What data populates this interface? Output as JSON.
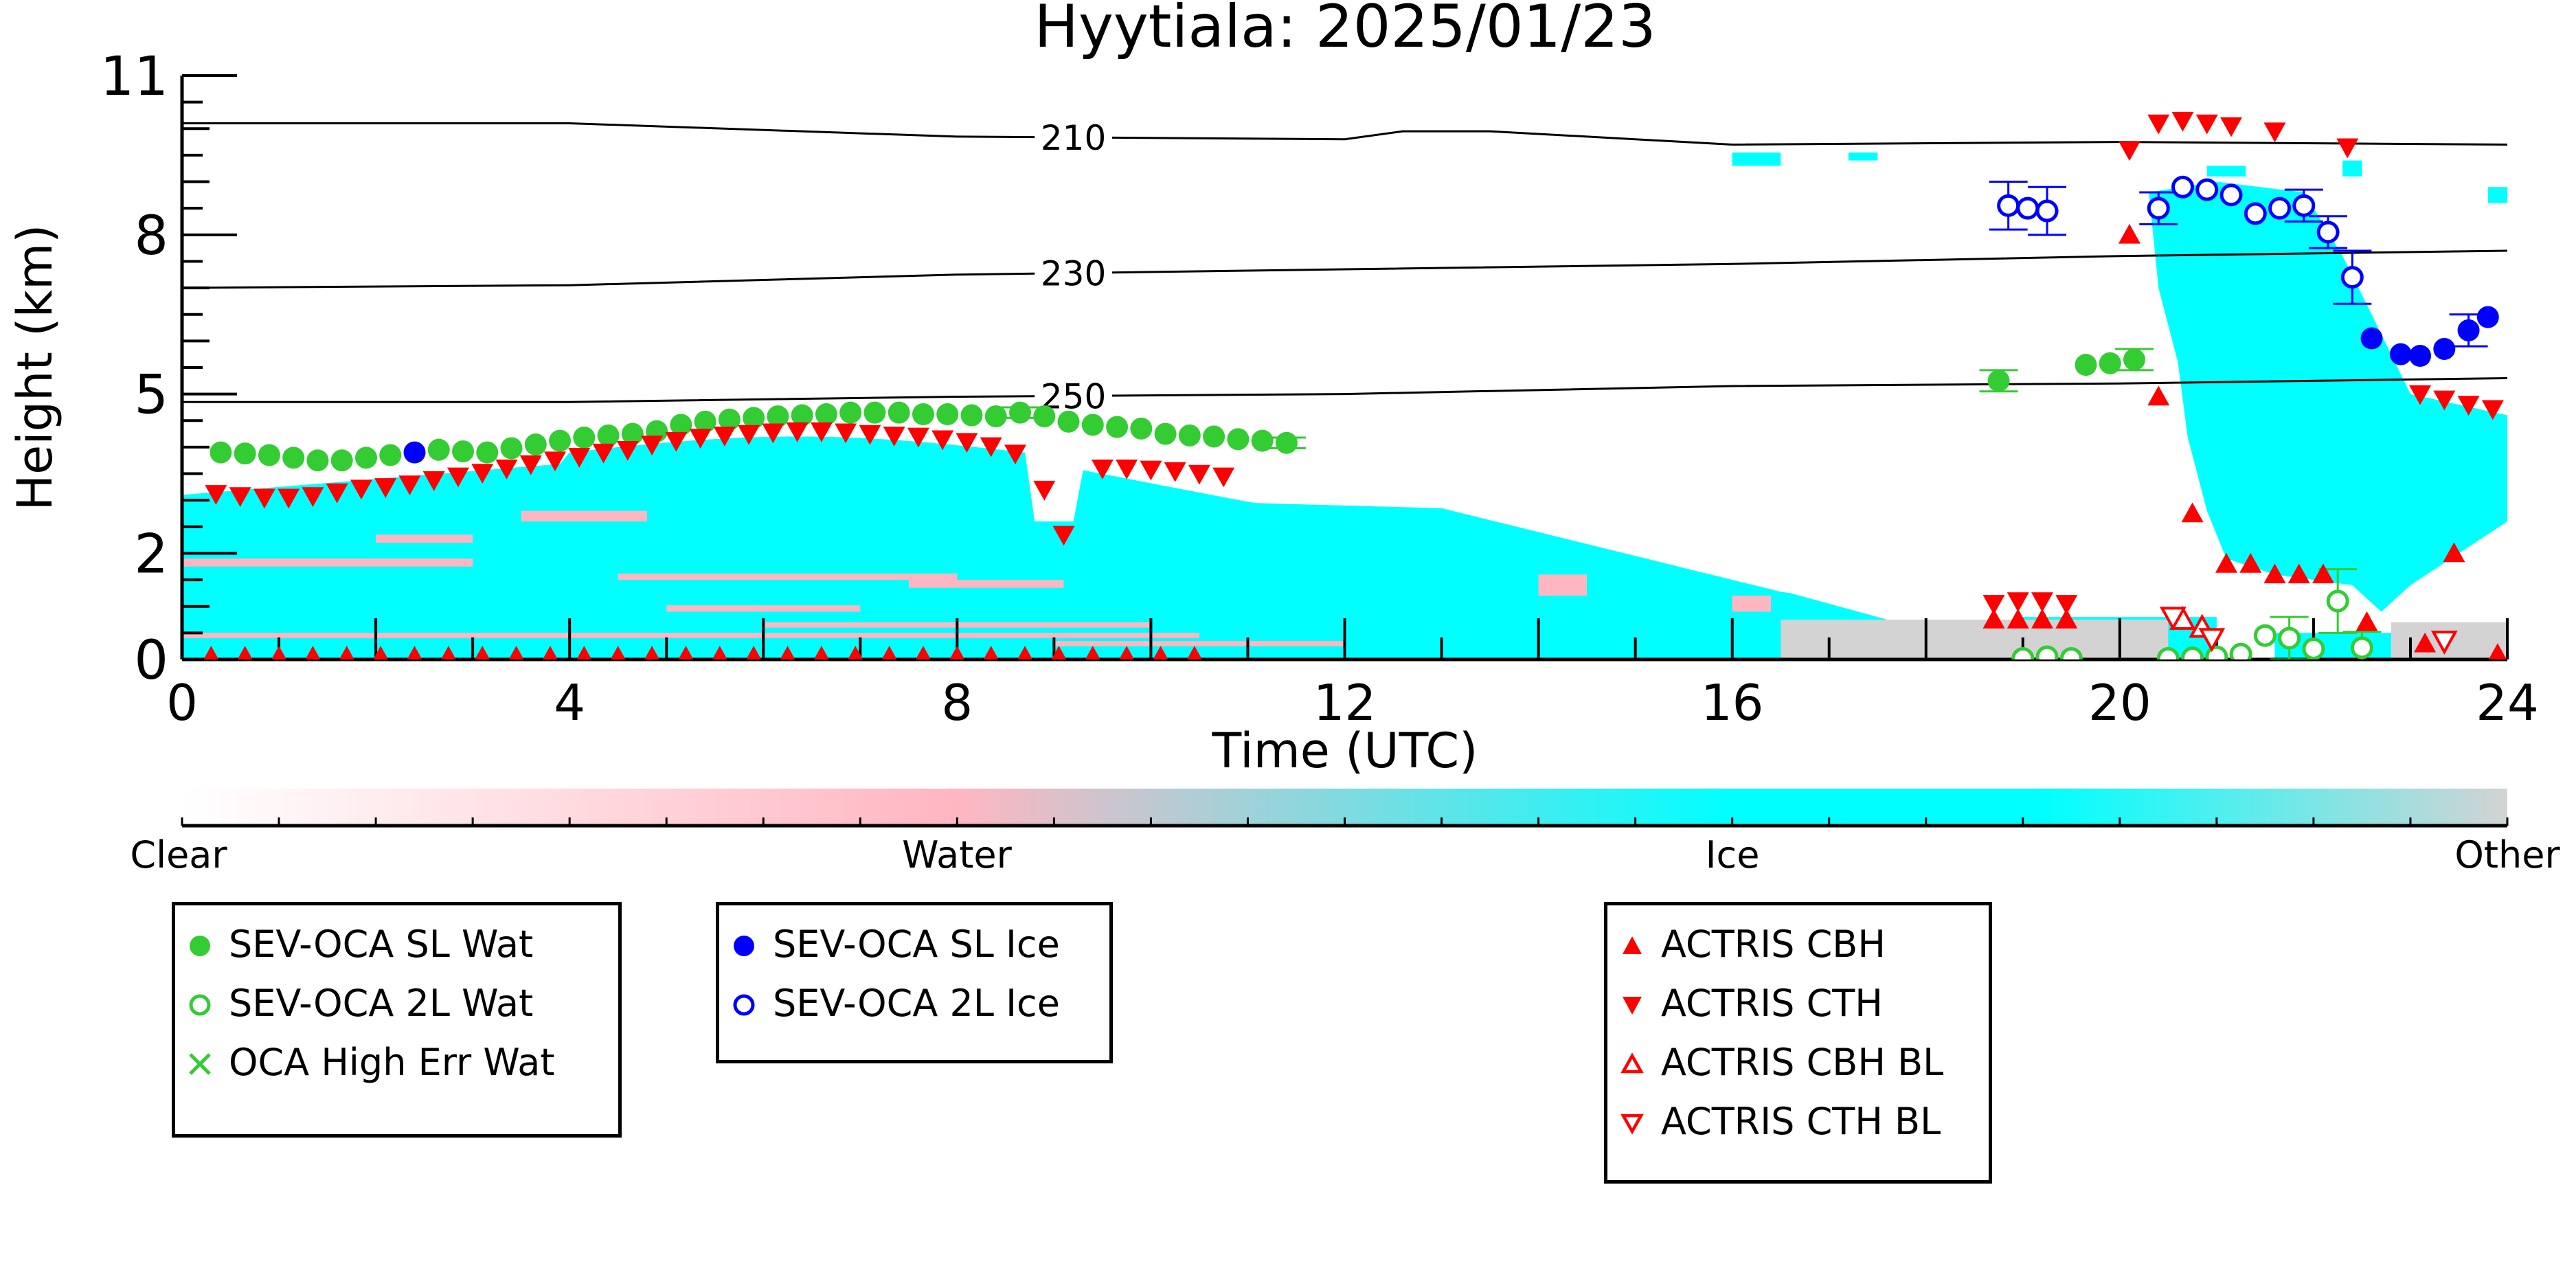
{
  "chart_data": {
    "type": "scatter",
    "title": "Hyytiala: 2025/01/23",
    "xlabel": "Time (UTC)",
    "ylabel": "Height (km)",
    "xlim": [
      0,
      24
    ],
    "ylim": [
      0,
      11
    ],
    "x_ticks": [
      0,
      4,
      8,
      12,
      16,
      20,
      24
    ],
    "y_ticks": [
      0,
      2,
      5,
      8,
      11
    ],
    "y_tick_labels": [
      "0",
      "2",
      "5",
      "8",
      "11"
    ],
    "contour_labels": [
      "210",
      "230",
      "250"
    ],
    "contours": [
      {
        "label": "210",
        "points": [
          [
            0,
            10.1
          ],
          [
            4,
            10.1
          ],
          [
            8,
            9.85
          ],
          [
            12,
            9.8
          ],
          [
            12.6,
            9.95
          ],
          [
            13.5,
            9.95
          ],
          [
            16,
            9.7
          ],
          [
            20,
            9.75
          ],
          [
            24,
            9.7
          ]
        ]
      },
      {
        "label": "230",
        "points": [
          [
            0,
            7.0
          ],
          [
            4,
            7.05
          ],
          [
            8,
            7.25
          ],
          [
            12,
            7.35
          ],
          [
            16,
            7.45
          ],
          [
            20,
            7.6
          ],
          [
            24,
            7.7
          ]
        ]
      },
      {
        "label": "250",
        "points": [
          [
            0,
            4.85
          ],
          [
            4,
            4.85
          ],
          [
            8,
            4.95
          ],
          [
            12,
            5.0
          ],
          [
            16,
            5.15
          ],
          [
            20,
            5.2
          ],
          [
            24,
            5.3
          ]
        ]
      }
    ],
    "colorbar": {
      "labels": [
        "Clear",
        "Water",
        "Ice",
        "Other"
      ],
      "colors": [
        "#ffffff",
        "#ffb6c1",
        "#00ffff",
        "#d3d3d3"
      ]
    },
    "categories_colors": {
      "ice": "#00ffff",
      "water": "#ffb6c1",
      "other": "#d3d3d3"
    },
    "series": [
      {
        "name": "SEV-OCA SL Wat",
        "marker": "circle-filled",
        "color": "#33cc33",
        "points": [
          [
            0.4,
            3.9
          ],
          [
            0.65,
            3.88
          ],
          [
            0.9,
            3.85
          ],
          [
            1.15,
            3.8
          ],
          [
            1.4,
            3.75
          ],
          [
            1.65,
            3.75
          ],
          [
            1.9,
            3.8
          ],
          [
            2.15,
            3.85
          ],
          [
            2.65,
            3.95
          ],
          [
            2.9,
            3.92
          ],
          [
            3.15,
            3.9
          ],
          [
            3.4,
            3.98
          ],
          [
            3.65,
            4.05
          ],
          [
            3.9,
            4.12
          ],
          [
            4.15,
            4.18
          ],
          [
            4.4,
            4.22
          ],
          [
            4.65,
            4.25
          ],
          [
            4.9,
            4.3
          ],
          [
            5.15,
            4.42
          ],
          [
            5.4,
            4.48
          ],
          [
            5.65,
            4.52
          ],
          [
            5.9,
            4.55
          ],
          [
            6.15,
            4.58
          ],
          [
            6.4,
            4.6
          ],
          [
            6.65,
            4.62
          ],
          [
            6.9,
            4.65
          ],
          [
            7.15,
            4.65
          ],
          [
            7.4,
            4.65
          ],
          [
            7.65,
            4.62
          ],
          [
            7.9,
            4.62
          ],
          [
            8.15,
            4.6
          ],
          [
            8.4,
            4.58
          ],
          [
            8.65,
            4.65
          ],
          [
            8.9,
            4.58
          ],
          [
            9.15,
            4.48
          ],
          [
            9.4,
            4.42
          ],
          [
            9.65,
            4.38
          ],
          [
            9.9,
            4.35
          ],
          [
            10.15,
            4.25
          ],
          [
            10.4,
            4.22
          ],
          [
            10.65,
            4.2
          ],
          [
            10.9,
            4.15
          ],
          [
            11.15,
            4.12
          ],
          [
            11.4,
            4.08
          ],
          [
            18.75,
            5.25
          ],
          [
            19.65,
            5.55
          ],
          [
            19.9,
            5.58
          ],
          [
            20.15,
            5.65
          ]
        ],
        "errors": [
          [
            18.75,
            0.2
          ],
          [
            20.15,
            0.2
          ],
          [
            8.65,
            0.1
          ],
          [
            11.4,
            0.1
          ]
        ]
      },
      {
        "name": "SEV-OCA 2L Wat",
        "marker": "circle-open",
        "color": "#33cc33",
        "points": [
          [
            19.0,
            0.02
          ],
          [
            19.25,
            0.05
          ],
          [
            19.5,
            0.02
          ],
          [
            20.5,
            0.02
          ],
          [
            20.75,
            0.03
          ],
          [
            21.0,
            0.05
          ],
          [
            21.25,
            0.1
          ],
          [
            21.5,
            0.45
          ],
          [
            21.75,
            0.4
          ],
          [
            22.0,
            0.2
          ],
          [
            22.25,
            1.1
          ],
          [
            22.5,
            0.22
          ]
        ],
        "errors": [
          [
            21.75,
            0.4
          ],
          [
            22.25,
            0.6
          ],
          [
            22.5,
            0.3
          ]
        ]
      },
      {
        "name": "OCA High Err Wat",
        "marker": "x",
        "color": "#33cc33",
        "points": []
      },
      {
        "name": "SEV-OCA SL Ice",
        "marker": "circle-filled",
        "color": "#0000ff",
        "points": [
          [
            2.4,
            3.9
          ],
          [
            22.6,
            6.05
          ],
          [
            22.9,
            5.75
          ],
          [
            23.1,
            5.72
          ],
          [
            23.35,
            5.85
          ],
          [
            23.6,
            6.2
          ],
          [
            23.8,
            6.45
          ]
        ],
        "errors": [
          [
            23.6,
            0.3
          ]
        ]
      },
      {
        "name": "SEV-OCA 2L Ice",
        "marker": "circle-open",
        "color": "#0000ff",
        "points": [
          [
            18.85,
            8.55
          ],
          [
            19.05,
            8.5
          ],
          [
            19.25,
            8.45
          ],
          [
            20.4,
            8.5
          ],
          [
            20.65,
            8.9
          ],
          [
            20.9,
            8.85
          ],
          [
            21.15,
            8.75
          ],
          [
            21.4,
            8.4
          ],
          [
            21.65,
            8.5
          ],
          [
            21.9,
            8.55
          ],
          [
            22.15,
            8.05
          ],
          [
            22.4,
            7.2
          ]
        ],
        "errors": [
          [
            18.85,
            0.45
          ],
          [
            19.25,
            0.45
          ],
          [
            20.4,
            0.3
          ],
          [
            21.9,
            0.3
          ],
          [
            22.15,
            0.3
          ],
          [
            22.4,
            0.5
          ]
        ]
      },
      {
        "name": "ACTRIS CBH",
        "marker": "triangle-up",
        "color": "#ff0000",
        "points": [
          [
            0.3,
            0.05
          ],
          [
            0.65,
            0.05
          ],
          [
            1.0,
            0.05
          ],
          [
            1.35,
            0.05
          ],
          [
            1.7,
            0.05
          ],
          [
            2.05,
            0.05
          ],
          [
            2.4,
            0.05
          ],
          [
            2.75,
            0.05
          ],
          [
            3.1,
            0.05
          ],
          [
            3.45,
            0.05
          ],
          [
            3.8,
            0.05
          ],
          [
            4.15,
            0.05
          ],
          [
            4.5,
            0.05
          ],
          [
            4.85,
            0.05
          ],
          [
            5.2,
            0.05
          ],
          [
            5.55,
            0.05
          ],
          [
            5.9,
            0.05
          ],
          [
            6.25,
            0.05
          ],
          [
            6.6,
            0.05
          ],
          [
            6.95,
            0.05
          ],
          [
            7.3,
            0.05
          ],
          [
            7.65,
            0.05
          ],
          [
            8.0,
            0.05
          ],
          [
            8.35,
            0.05
          ],
          [
            8.7,
            0.05
          ],
          [
            9.05,
            0.05
          ],
          [
            9.4,
            0.05
          ],
          [
            9.75,
            0.05
          ],
          [
            10.1,
            0.05
          ],
          [
            10.45,
            0.05
          ],
          [
            18.7,
            0.75
          ],
          [
            18.95,
            0.75
          ],
          [
            19.2,
            0.75
          ],
          [
            19.45,
            0.75
          ],
          [
            20.1,
            8.0
          ],
          [
            20.4,
            4.95
          ],
          [
            20.75,
            2.75
          ],
          [
            21.1,
            1.8
          ],
          [
            21.35,
            1.8
          ],
          [
            21.6,
            1.6
          ],
          [
            21.85,
            1.6
          ],
          [
            22.1,
            1.6
          ],
          [
            22.55,
            0.7
          ],
          [
            23.15,
            0.3
          ],
          [
            23.45,
            2.0
          ],
          [
            23.9,
            0.1
          ]
        ]
      },
      {
        "name": "ACTRIS CTH",
        "marker": "triangle-down",
        "color": "#ff0000",
        "points": [
          [
            0.35,
            3.12
          ],
          [
            0.6,
            3.08
          ],
          [
            0.85,
            3.05
          ],
          [
            1.1,
            3.05
          ],
          [
            1.35,
            3.08
          ],
          [
            1.6,
            3.15
          ],
          [
            1.85,
            3.22
          ],
          [
            2.1,
            3.25
          ],
          [
            2.35,
            3.3
          ],
          [
            2.6,
            3.38
          ],
          [
            2.85,
            3.45
          ],
          [
            3.1,
            3.52
          ],
          [
            3.35,
            3.6
          ],
          [
            3.6,
            3.68
          ],
          [
            3.85,
            3.75
          ],
          [
            4.1,
            3.82
          ],
          [
            4.35,
            3.9
          ],
          [
            4.6,
            3.95
          ],
          [
            4.85,
            4.05
          ],
          [
            5.1,
            4.12
          ],
          [
            5.35,
            4.18
          ],
          [
            5.6,
            4.22
          ],
          [
            5.85,
            4.25
          ],
          [
            6.1,
            4.28
          ],
          [
            6.35,
            4.3
          ],
          [
            6.6,
            4.3
          ],
          [
            6.85,
            4.28
          ],
          [
            7.1,
            4.25
          ],
          [
            7.35,
            4.22
          ],
          [
            7.6,
            4.2
          ],
          [
            7.85,
            4.15
          ],
          [
            8.1,
            4.1
          ],
          [
            8.35,
            4.02
          ],
          [
            8.6,
            3.88
          ],
          [
            8.9,
            3.2
          ],
          [
            9.1,
            2.35
          ],
          [
            9.5,
            3.6
          ],
          [
            9.75,
            3.6
          ],
          [
            10.0,
            3.58
          ],
          [
            10.25,
            3.55
          ],
          [
            10.5,
            3.5
          ],
          [
            10.75,
            3.45
          ],
          [
            18.7,
            1.05
          ],
          [
            18.95,
            1.1
          ],
          [
            19.2,
            1.1
          ],
          [
            19.45,
            1.05
          ],
          [
            20.1,
            9.6
          ],
          [
            20.4,
            10.1
          ],
          [
            20.65,
            10.15
          ],
          [
            20.9,
            10.1
          ],
          [
            21.15,
            10.05
          ],
          [
            21.6,
            9.95
          ],
          [
            22.35,
            9.65
          ],
          [
            23.1,
            5.0
          ],
          [
            23.35,
            4.9
          ],
          [
            23.6,
            4.8
          ],
          [
            23.85,
            4.72
          ]
        ]
      },
      {
        "name": "ACTRIS CBH BL",
        "marker": "triangle-up-open",
        "color": "#ff0000",
        "points": [
          [
            20.65,
            0.75
          ],
          [
            20.85,
            0.6
          ]
        ]
      },
      {
        "name": "ACTRIS CTH BL",
        "marker": "triangle-down-open",
        "color": "#ff0000",
        "points": [
          [
            20.55,
            0.8
          ],
          [
            20.95,
            0.4
          ],
          [
            23.35,
            0.35
          ]
        ]
      }
    ],
    "legend_placement": "below",
    "grid": false
  },
  "legends": [
    {
      "entries": [
        {
          "label": "SEV-OCA SL Wat",
          "marker": "circle-filled",
          "color": "#33cc33"
        },
        {
          "label": "SEV-OCA 2L Wat",
          "marker": "circle-open",
          "color": "#33cc33"
        },
        {
          "label": "OCA High Err Wat",
          "marker": "x",
          "color": "#33cc33"
        }
      ]
    },
    {
      "entries": [
        {
          "label": "SEV-OCA SL Ice",
          "marker": "circle-filled",
          "color": "#0000ff"
        },
        {
          "label": "SEV-OCA 2L Ice",
          "marker": "circle-open",
          "color": "#0000ff"
        }
      ]
    },
    {
      "entries": [
        {
          "label": "ACTRIS CBH",
          "marker": "triangle-up",
          "color": "#ff0000"
        },
        {
          "label": "ACTRIS CTH",
          "marker": "triangle-down",
          "color": "#ff0000"
        },
        {
          "label": "ACTRIS CBH BL",
          "marker": "triangle-up-open",
          "color": "#ff0000"
        },
        {
          "label": "ACTRIS CTH BL",
          "marker": "triangle-down-open",
          "color": "#ff0000"
        }
      ]
    }
  ]
}
